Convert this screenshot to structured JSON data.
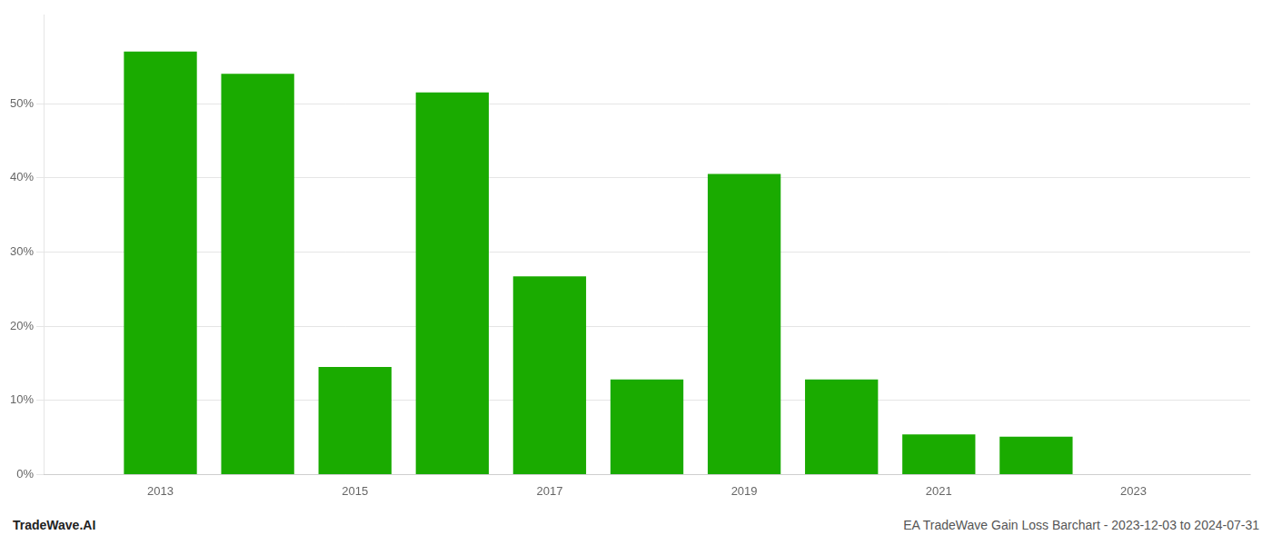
{
  "chart_data": {
    "type": "bar",
    "x": [
      2013,
      2014,
      2015,
      2016,
      2017,
      2018,
      2019,
      2020,
      2021,
      2022
    ],
    "values": [
      0.57,
      0.54,
      0.145,
      0.515,
      0.267,
      0.128,
      0.405,
      0.128,
      0.054,
      0.051
    ],
    "color": "#1aab00",
    "xlim": [
      2011.8,
      2024.2
    ],
    "xticks": [
      2013,
      2015,
      2017,
      2019,
      2021,
      2023
    ],
    "ylim": [
      0,
      0.62
    ],
    "yticks": [
      {
        "value": 0.0,
        "label": "0%"
      },
      {
        "value": 0.1,
        "label": "10%"
      },
      {
        "value": 0.2,
        "label": "20%"
      },
      {
        "value": 0.3,
        "label": "30%"
      },
      {
        "value": 0.4,
        "label": "40%"
      },
      {
        "value": 0.5,
        "label": "50%"
      }
    ],
    "grid": "y",
    "annotations": [
      "TradeWave.AI",
      "EA TradeWave Gain Loss Barchart - 2023-12-03 to 2024-07-31"
    ]
  }
}
